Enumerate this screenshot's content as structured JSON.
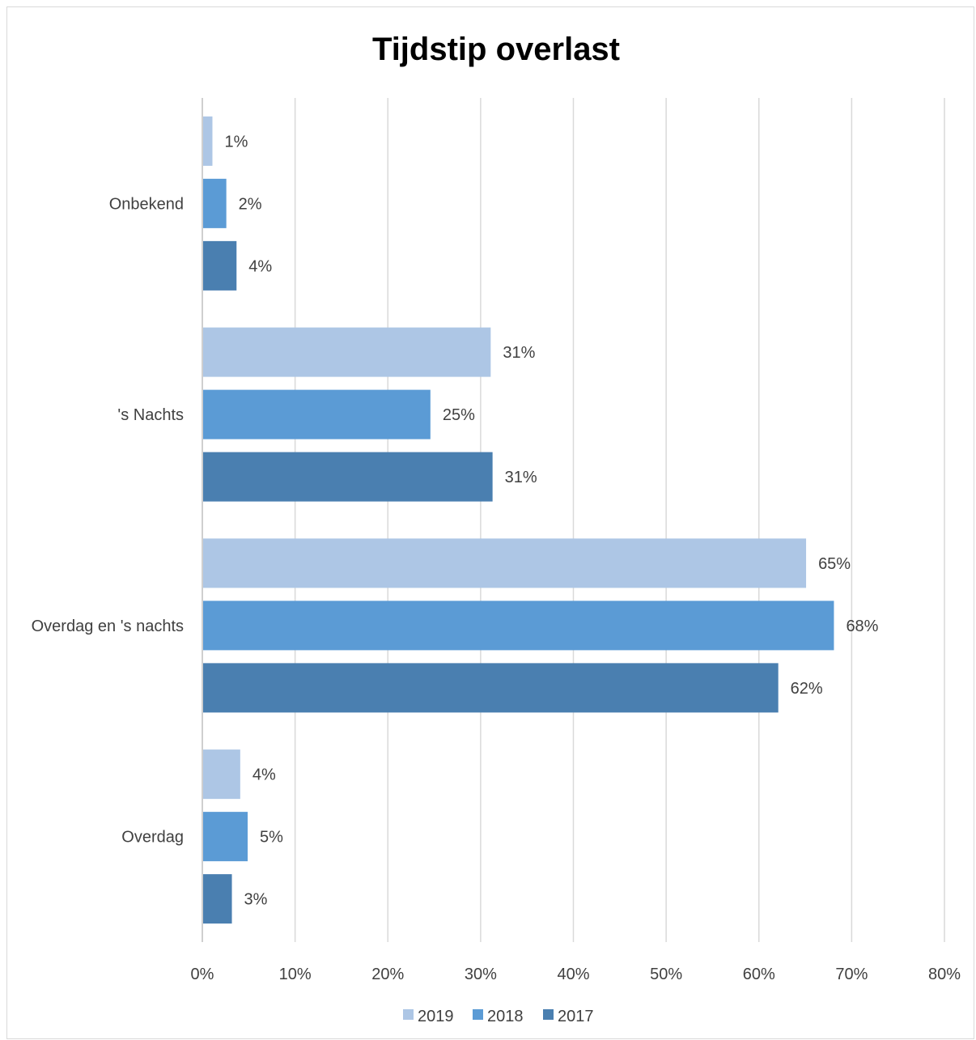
{
  "chart_data": {
    "type": "bar",
    "orientation": "horizontal",
    "title": "Tijdstip overlast",
    "categories": [
      "Onbekend",
      "'s Nachts",
      "Overdag en 's nachts",
      "Overdag"
    ],
    "series": [
      {
        "name": "2019",
        "color": "#adc6e5",
        "values": [
          1,
          31,
          65,
          4
        ],
        "labels": [
          "1%",
          "31%",
          "65%",
          "4%"
        ]
      },
      {
        "name": "2018",
        "color": "#5b9bd5",
        "values": [
          2.5,
          24.5,
          68,
          4.8
        ],
        "labels": [
          "2%",
          "25%",
          "68%",
          "5%"
        ]
      },
      {
        "name": "2017",
        "color": "#4a7fb0",
        "values": [
          3.6,
          31.2,
          62,
          3.1
        ],
        "labels": [
          "4%",
          "31%",
          "62%",
          "3%"
        ]
      }
    ],
    "xlim": [
      0,
      80
    ],
    "xticks": [
      "0%",
      "10%",
      "20%",
      "30%",
      "40%",
      "50%",
      "60%",
      "70%",
      "80%"
    ],
    "xlabel": "",
    "ylabel": "",
    "grid": "vertical",
    "legend": "bottom"
  }
}
